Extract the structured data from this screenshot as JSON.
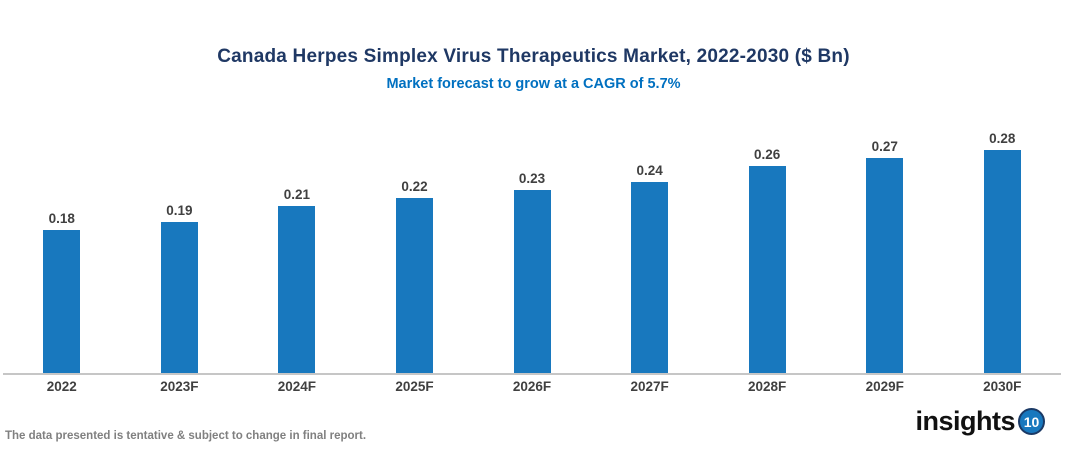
{
  "header": {
    "title": "Canada Herpes Simplex Virus Therapeutics Market, 2022-2030 ($ Bn)",
    "subtitle": "Market forecast to grow at a CAGR of 5.7%"
  },
  "chart_data": {
    "type": "bar",
    "categories": [
      "2022",
      "2023F",
      "2024F",
      "2025F",
      "2026F",
      "2027F",
      "2028F",
      "2029F",
      "2030F"
    ],
    "values": [
      0.18,
      0.19,
      0.21,
      0.22,
      0.23,
      0.24,
      0.26,
      0.27,
      0.28
    ],
    "value_labels": [
      "0.18",
      "0.19",
      "0.21",
      "0.22",
      "0.23",
      "0.24",
      "0.26",
      "0.27",
      "0.28"
    ],
    "title": "Canada Herpes Simplex Virus Therapeutics Market, 2022-2030 ($ Bn)",
    "subtitle": "Market forecast to grow at a CAGR of 5.7%",
    "xlabel": "",
    "ylabel": "",
    "ylim": [
      0,
      0.3
    ],
    "grid": false,
    "legend": false,
    "bar_color": "#1878be",
    "data_label_position": "above-bar"
  },
  "footer": {
    "disclaimer": "The data presented is tentative & subject to change in final report."
  },
  "logo": {
    "text": "insights",
    "badge": "10"
  },
  "colors": {
    "bar": "#1878be",
    "title": "#1f3864",
    "subtitle": "#0070c0",
    "label": "#404040",
    "axis_line": "#c6c6c6",
    "footer_text": "#808080",
    "logo_badge": "#1878be",
    "logo_badge_ring": "#1b3a66"
  }
}
